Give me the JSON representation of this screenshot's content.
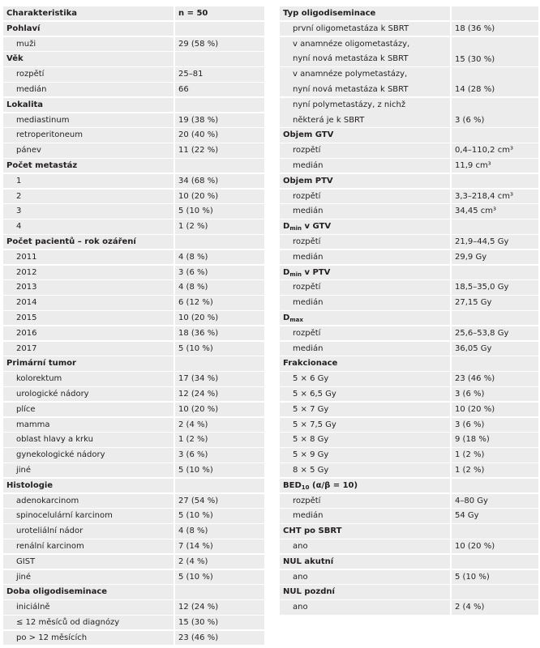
{
  "left": {
    "header": [
      "Charakteristika",
      "n = 50"
    ],
    "sections": [
      {
        "title": "Pohlaví",
        "rows": [
          {
            "label": "muži",
            "value": "29 (58 %)"
          }
        ]
      },
      {
        "title": "Věk",
        "rows": [
          {
            "label": "rozpětí",
            "value": "25–81"
          },
          {
            "label": "medián",
            "value": "66"
          }
        ]
      },
      {
        "title": "Lokalita",
        "rows": [
          {
            "label": "mediastinum",
            "value": "19 (38 %)"
          },
          {
            "label": "retroperitoneum",
            "value": "20 (40 %)"
          },
          {
            "label": "pánev",
            "value": "11 (22 %)"
          }
        ]
      },
      {
        "title": "Počet metastáz",
        "rows": [
          {
            "label": "1",
            "value": "34 (68 %)"
          },
          {
            "label": "2",
            "value": "10 (20 %)"
          },
          {
            "label": "3",
            "value": "5 (10 %)"
          },
          {
            "label": "4",
            "value": "1 (2 %)"
          }
        ]
      },
      {
        "title": "Počet pacientů – rok ozáření",
        "rows": [
          {
            "label": "2011",
            "value": "4 (8 %)"
          },
          {
            "label": "2012",
            "value": "3 (6 %)"
          },
          {
            "label": "2013",
            "value": "4 (8 %)"
          },
          {
            "label": "2014",
            "value": "6 (12 %)"
          },
          {
            "label": "2015",
            "value": "10 (20 %)"
          },
          {
            "label": "2016",
            "value": "18 (36 %)"
          },
          {
            "label": "2017",
            "value": "5 (10 %)"
          }
        ]
      },
      {
        "title": "Primární tumor",
        "rows": [
          {
            "label": "kolorektum",
            "value": "17 (34 %)"
          },
          {
            "label": "urologické nádory",
            "value": "12 (24 %)"
          },
          {
            "label": "plíce",
            "value": "10 (20 %)"
          },
          {
            "label": "mamma",
            "value": "2 (4 %)"
          },
          {
            "label": "oblast hlavy a krku",
            "value": "1 (2 %)"
          },
          {
            "label": "gynekologické nádory",
            "value": "3 (6 %)"
          },
          {
            "label": "jiné",
            "value": "5 (10 %)"
          }
        ]
      },
      {
        "title": "Histologie",
        "rows": [
          {
            "label": "adenokarcinom",
            "value": "27 (54 %)"
          },
          {
            "label": "spinocelulární karcinom",
            "value": "5 (10 %)"
          },
          {
            "label": "uroteliální nádor",
            "value": "4 (8 %)"
          },
          {
            "label": "renální karcinom",
            "value": "7 (14 %)"
          },
          {
            "label": "GIST",
            "value": "2 (4 %)"
          },
          {
            "label": "jiné",
            "value": "5 (10 %)"
          }
        ]
      },
      {
        "title": "Doba oligodiseminace",
        "rows": [
          {
            "label": "iniciálně",
            "value": "12 (24 %)"
          },
          {
            "label": "≤ 12 měsíců od diagnózy",
            "value": "15 (30 %)"
          },
          {
            "label": "po > 12 měsících",
            "value": "23 (46 %)"
          }
        ]
      }
    ]
  },
  "right": {
    "sections": [
      {
        "title": "Typ oligodiseminace",
        "rows": [
          {
            "label": "první oligometastáza k SBRT",
            "value": "18 (36 %)"
          },
          {
            "label": [
              "v anamnéze oligometastázy,",
              "nyní nová metastáza k SBRT"
            ],
            "value": "15 (30 %)"
          },
          {
            "label": [
              "v anamnéze polymetastázy,",
              "nyní nová metastáza k SBRT"
            ],
            "value": "14 (28 %)"
          },
          {
            "label": [
              "nyní polymetastázy, z nichž",
              "některá je k SBRT"
            ],
            "value": "3 (6 %)"
          }
        ]
      },
      {
        "title": "Objem GTV",
        "rows": [
          {
            "label": "rozpětí",
            "value": "0,4–110,2 cm³"
          },
          {
            "label": "medián",
            "value": "11,9 cm³"
          }
        ]
      },
      {
        "title": "Objem PTV",
        "rows": [
          {
            "label": "rozpětí",
            "value": "3,3–218,4 cm³"
          },
          {
            "label": "medián",
            "value": "34,45 cm³"
          }
        ]
      },
      {
        "title": {
          "base": "D",
          "sub": "min",
          "rest": " v GTV"
        },
        "rows": [
          {
            "label": "rozpětí",
            "value": "21,9–44,5 Gy"
          },
          {
            "label": "medián",
            "value": "29,9 Gy"
          }
        ]
      },
      {
        "title": {
          "base": "D",
          "sub": "min",
          "rest": " v PTV"
        },
        "rows": [
          {
            "label": "rozpětí",
            "value": "18,5–35,0 Gy"
          },
          {
            "label": "medián",
            "value": "27,15 Gy"
          }
        ]
      },
      {
        "title": {
          "base": "D",
          "sub": "max"
        },
        "rows": [
          {
            "label": "rozpětí",
            "value": "25,6–53,8 Gy"
          },
          {
            "label": "medián",
            "value": "36,05 Gy"
          }
        ]
      },
      {
        "title": "Frakcionace",
        "rows": [
          {
            "label": "5 × 6 Gy",
            "value": "23 (46 %)"
          },
          {
            "label": "5 × 6,5 Gy",
            "value": "3 (6 %)"
          },
          {
            "label": "5 × 7 Gy",
            "value": "10 (20 %)"
          },
          {
            "label": "5 × 7,5 Gy",
            "value": "3 (6 %)"
          },
          {
            "label": "5 × 8 Gy",
            "value": "9 (18 %)"
          },
          {
            "label": "5 × 9 Gy",
            "value": "1 (2 %)"
          },
          {
            "label": "8 × 5 Gy",
            "value": "1 (2 %)"
          }
        ]
      },
      {
        "title": {
          "base": "BED",
          "sub": "10",
          "rest": " (α/β = 10)"
        },
        "rows": [
          {
            "label": "rozpětí",
            "value": "4–80 Gy"
          },
          {
            "label": "medián",
            "value": "54 Gy"
          }
        ]
      },
      {
        "title": "CHT po SBRT",
        "rows": [
          {
            "label": "ano",
            "value": "10 (20 %)"
          }
        ]
      },
      {
        "title": "NUL akutní",
        "rows": [
          {
            "label": "ano",
            "value": "5 (10 %)"
          }
        ]
      },
      {
        "title": "NUL pozdní",
        "rows": [
          {
            "label": "ano",
            "value": "2 (4 %)"
          }
        ]
      }
    ]
  }
}
